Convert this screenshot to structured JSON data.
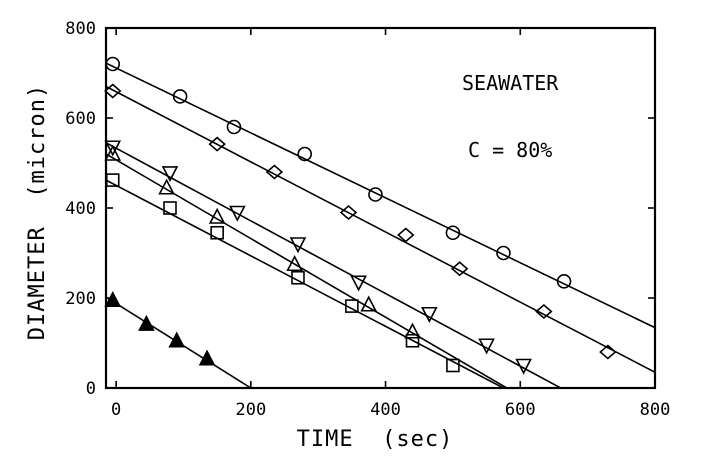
{
  "chart_data": {
    "type": "scatter",
    "xlabel": "TIME  (sec)",
    "ylabel": "DIAMETER  (micron)",
    "xlim": [
      -15,
      800
    ],
    "ylim": [
      0,
      800
    ],
    "xticks": [
      0,
      200,
      400,
      600,
      800
    ],
    "yticks": [
      0,
      200,
      400,
      600,
      800
    ],
    "xtick_labels": [
      "0",
      "200",
      "400",
      "600",
      "800"
    ],
    "ytick_labels": [
      "0",
      "200",
      "400",
      "600",
      "800"
    ],
    "grid": false,
    "annotations": [
      "SEAWATER",
      "C = 80%"
    ],
    "series": [
      {
        "marker": "circle",
        "points": [
          [
            -5,
            720
          ],
          [
            95,
            648
          ],
          [
            175,
            580
          ],
          [
            280,
            520
          ],
          [
            385,
            430
          ],
          [
            500,
            345
          ],
          [
            575,
            300
          ],
          [
            665,
            237
          ]
        ],
        "fit": [
          [
            -15,
            722
          ],
          [
            800,
            134
          ]
        ]
      },
      {
        "marker": "diamond",
        "points": [
          [
            -5,
            660
          ],
          [
            150,
            542
          ],
          [
            235,
            480
          ],
          [
            345,
            390
          ],
          [
            430,
            340
          ],
          [
            510,
            265
          ],
          [
            635,
            170
          ],
          [
            730,
            80
          ]
        ],
        "fit": [
          [
            -15,
            670
          ],
          [
            800,
            35
          ]
        ]
      },
      {
        "marker": "triangle-down",
        "points": [
          [
            -5,
            535
          ],
          [
            80,
            478
          ],
          [
            180,
            390
          ],
          [
            270,
            320
          ],
          [
            360,
            235
          ],
          [
            465,
            165
          ],
          [
            550,
            95
          ],
          [
            605,
            50
          ]
        ],
        "fit": [
          [
            -15,
            545
          ],
          [
            660,
            0
          ]
        ]
      },
      {
        "marker": "triangle-up",
        "points": [
          [
            -5,
            520
          ],
          [
            75,
            445
          ],
          [
            150,
            380
          ],
          [
            265,
            275
          ],
          [
            375,
            185
          ],
          [
            440,
            125
          ]
        ],
        "fit": [
          [
            -15,
            520
          ],
          [
            580,
            0
          ]
        ]
      },
      {
        "marker": "square",
        "points": [
          [
            -5,
            462
          ],
          [
            80,
            400
          ],
          [
            150,
            345
          ],
          [
            270,
            245
          ],
          [
            350,
            182
          ],
          [
            440,
            105
          ],
          [
            500,
            50
          ]
        ],
        "fit": [
          [
            -15,
            462
          ],
          [
            575,
            0
          ]
        ]
      },
      {
        "marker": "triangle-up-filled",
        "points": [
          [
            -5,
            195
          ],
          [
            45,
            142
          ],
          [
            90,
            105
          ],
          [
            135,
            65
          ]
        ],
        "fit": [
          [
            -15,
            202
          ],
          [
            200,
            0
          ]
        ]
      }
    ]
  }
}
